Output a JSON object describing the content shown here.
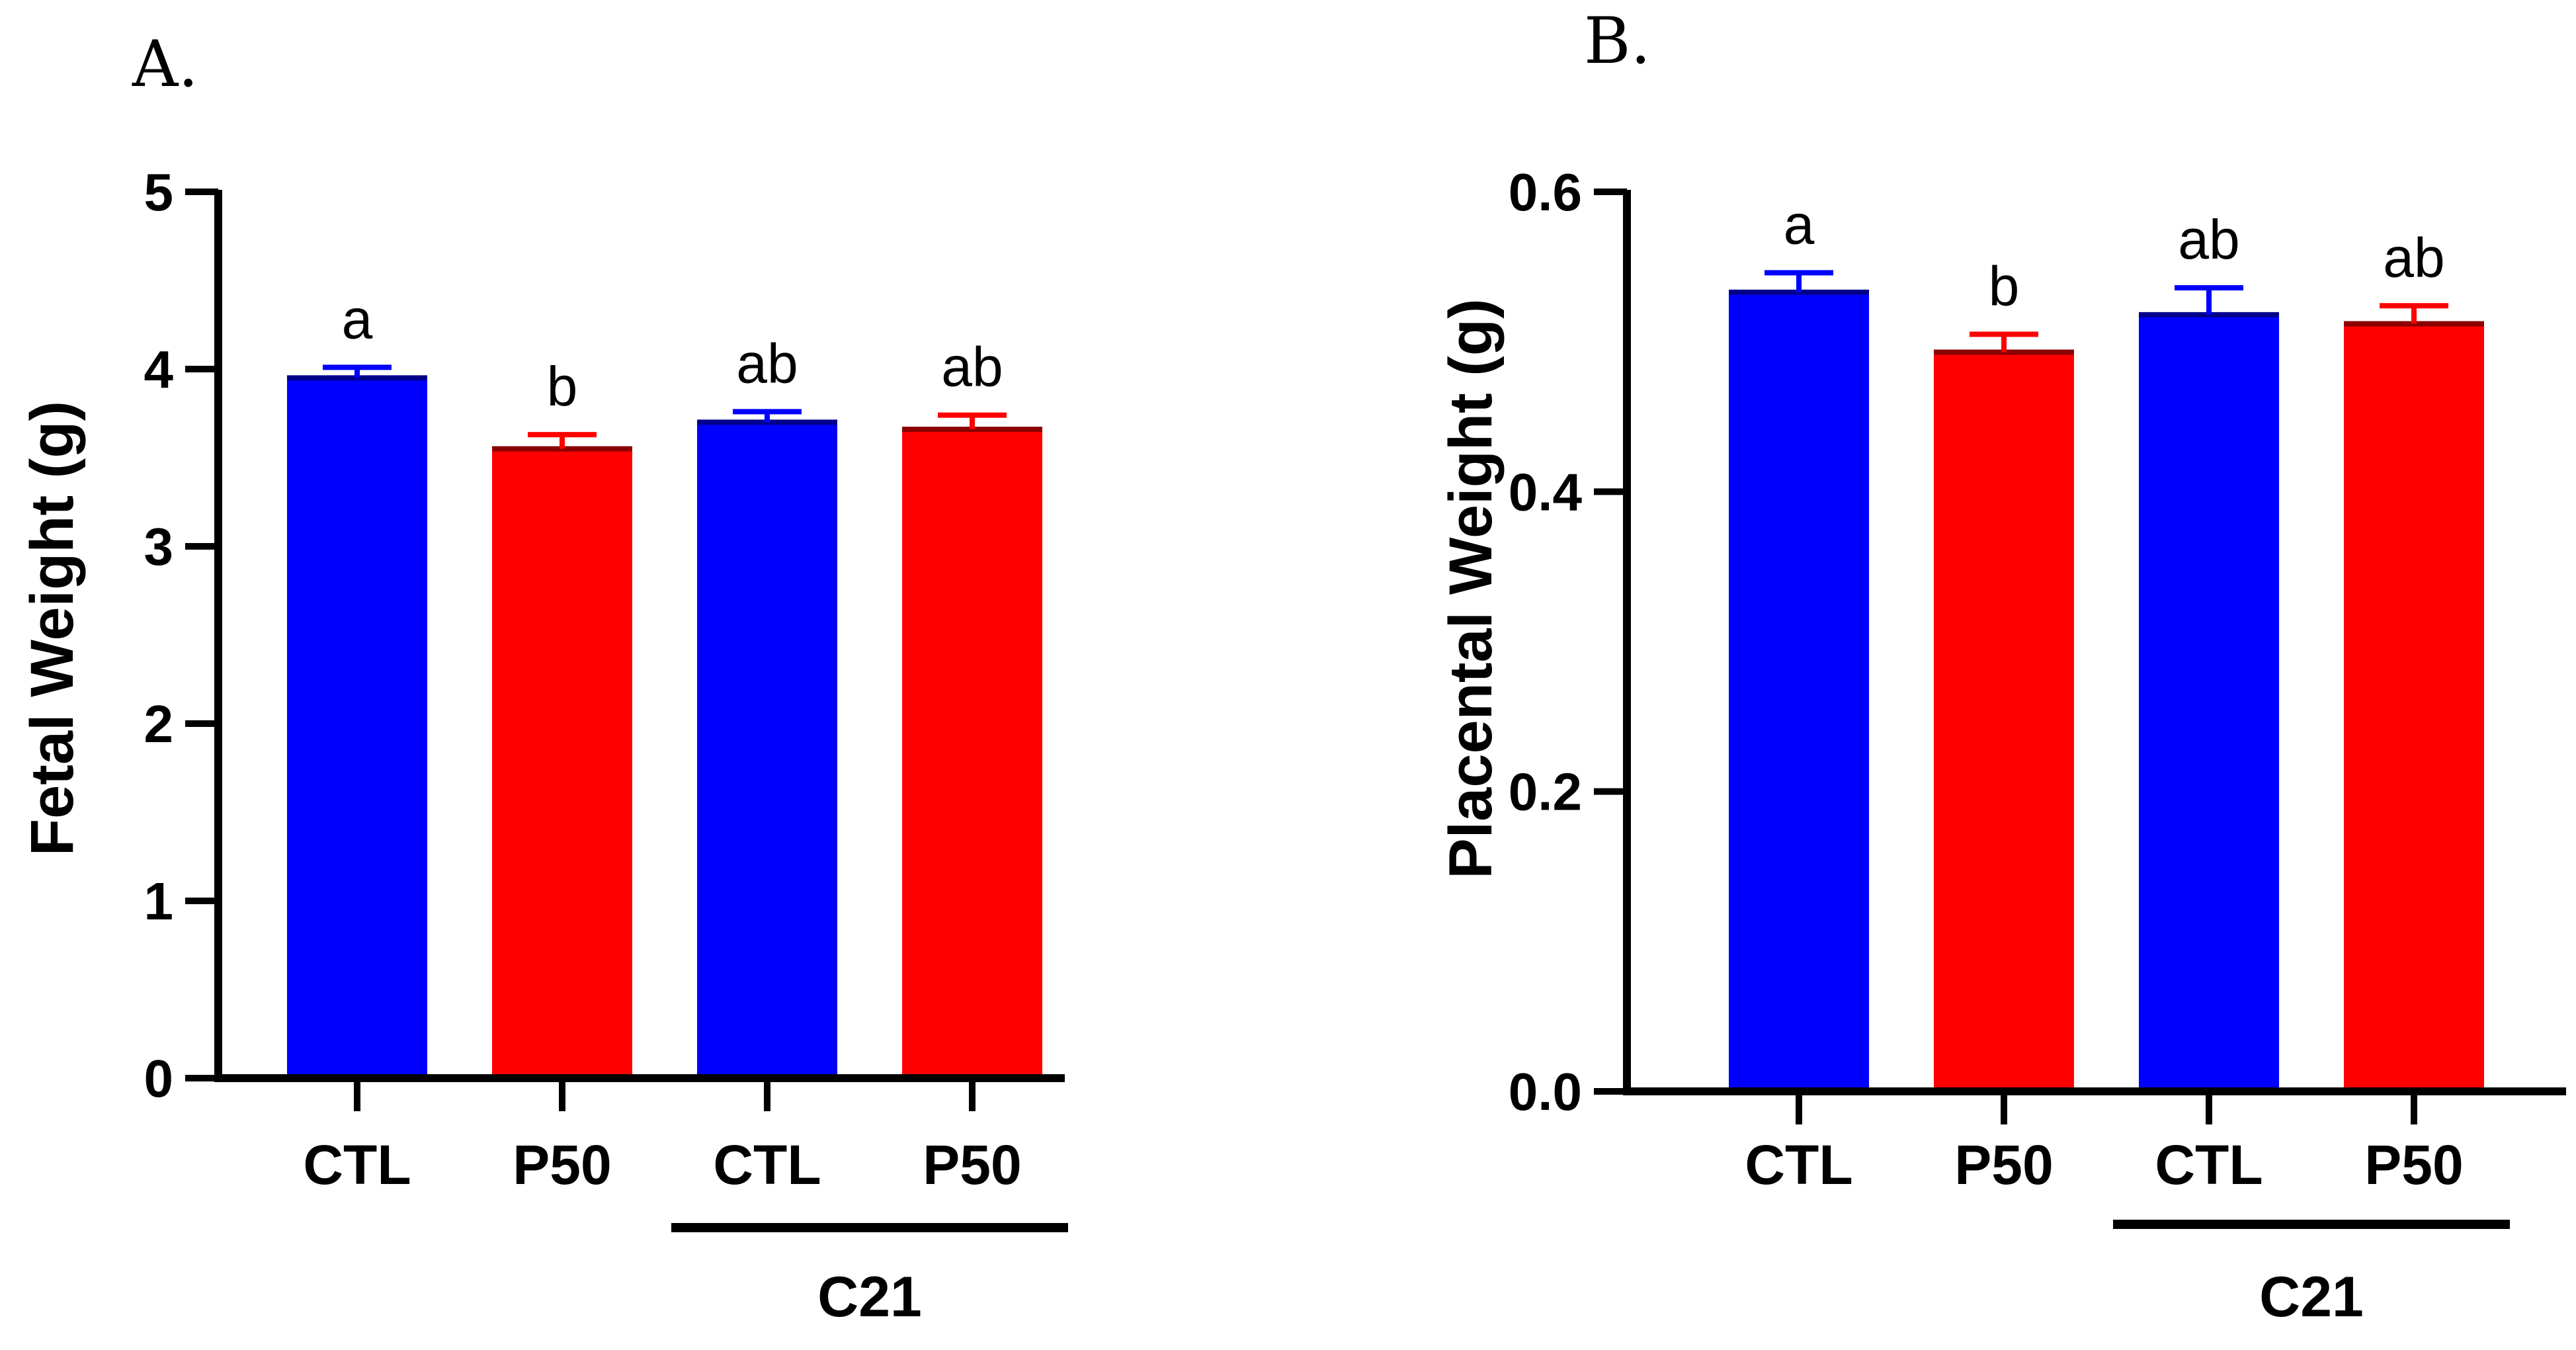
{
  "chart_data": [
    {
      "type": "bar",
      "panel": "A.",
      "ylabel": "Fetal Weight (g)",
      "ylim": [
        0,
        5
      ],
      "yticks": [
        "0",
        "1",
        "2",
        "3",
        "4",
        "5"
      ],
      "categories": [
        "CTL",
        "P50",
        "CTL",
        "P50"
      ],
      "group_label": "C21",
      "values": [
        3.95,
        3.55,
        3.7,
        3.66
      ],
      "errors": [
        0.06,
        0.08,
        0.06,
        0.08
      ],
      "significance": [
        "a",
        "b",
        "ab",
        "ab"
      ],
      "colors": [
        "#0000ff",
        "#ff0000",
        "#0000ff",
        "#ff0000"
      ]
    },
    {
      "type": "bar",
      "panel": "B.",
      "ylabel": "Placental Weight (g)",
      "ylim": [
        0,
        0.6
      ],
      "yticks": [
        "0.0",
        "0.2",
        "0.4",
        "0.6"
      ],
      "categories": [
        "CTL",
        "P50",
        "CTL",
        "P50"
      ],
      "group_label": "C21",
      "values": [
        0.533,
        0.493,
        0.518,
        0.512
      ],
      "errors": [
        0.013,
        0.012,
        0.018,
        0.012
      ],
      "significance": [
        "a",
        "b",
        "ab",
        "ab"
      ],
      "colors": [
        "#0000ff",
        "#ff0000",
        "#0000ff",
        "#ff0000"
      ]
    }
  ]
}
